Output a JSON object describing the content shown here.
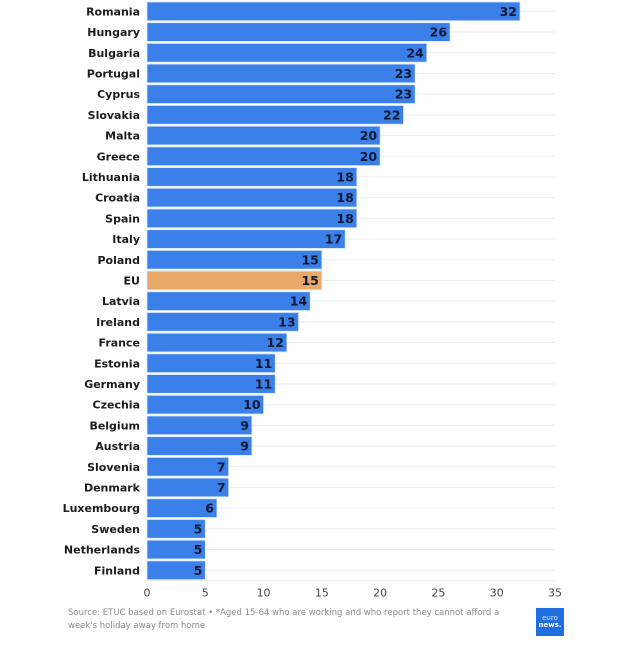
{
  "chart_data": {
    "type": "bar",
    "orientation": "horizontal",
    "title": "",
    "xlabel": "",
    "ylabel": "",
    "xlim": [
      0,
      35
    ],
    "x_ticks": [
      0,
      5,
      10,
      15,
      20,
      25,
      30,
      35
    ],
    "grid": "horizontal row separators",
    "categories": [
      "Romania",
      "Hungary",
      "Bulgaria",
      "Portugal",
      "Cyprus",
      "Slovakia",
      "Malta",
      "Greece",
      "Lithuania",
      "Croatia",
      "Spain",
      "Italy",
      "Poland",
      "EU",
      "Latvia",
      "Ireland",
      "France",
      "Estonia",
      "Germany",
      "Czechia",
      "Belgium",
      "Austria",
      "Slovenia",
      "Denmark",
      "Luxembourg",
      "Sweden",
      "Netherlands",
      "Finland"
    ],
    "values": [
      32,
      26,
      24,
      23,
      23,
      22,
      20,
      20,
      18,
      18,
      18,
      17,
      15,
      15,
      14,
      13,
      12,
      11,
      11,
      10,
      9,
      9,
      7,
      7,
      6,
      5,
      5,
      5
    ],
    "highlight": "EU",
    "colors": {
      "bar": "#3b7fe9",
      "highlight": "#e8a867",
      "bar_border": "#d6e6ff",
      "grid": "#ececec"
    }
  },
  "footer": {
    "source": "Source: ETUC based on Eurostat • *Aged 15-64 who are working and who report they cannot afford a week's holiday away from home"
  },
  "logo": {
    "top": "euro",
    "bottom": "news."
  }
}
